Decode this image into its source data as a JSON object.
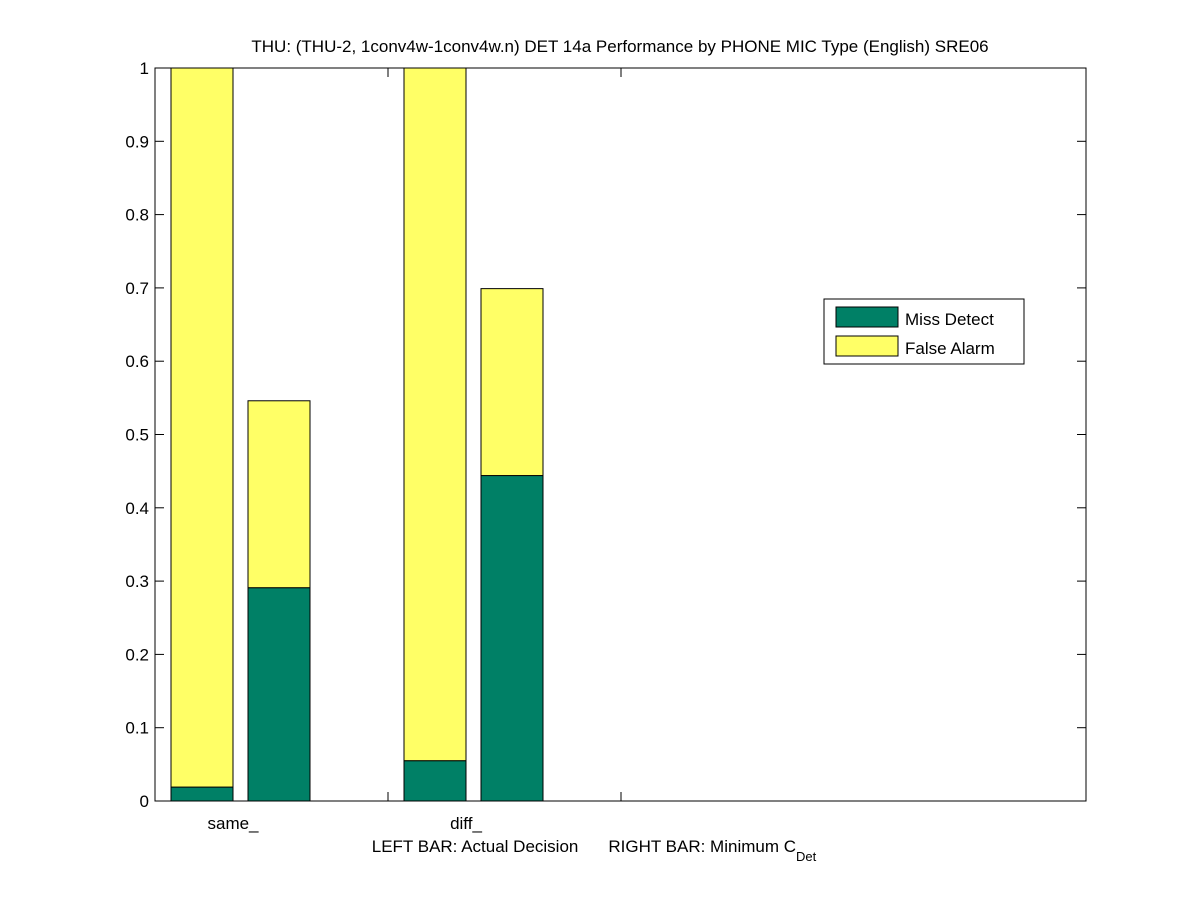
{
  "chart_data": {
    "type": "bar",
    "stacked": true,
    "title": "THU: (THU-2, 1conv4w-1conv4w.n) DET 14a Performance by PHONE MIC Type (English) SRE06",
    "xlabel": {
      "left_part": "LEFT BAR: Actual Decision",
      "right_part": "RIGHT BAR: Minimum C",
      "right_subscript": "Det"
    },
    "ylabel": "",
    "ylim": [
      0,
      1
    ],
    "yticks": [
      0,
      0.1,
      0.2,
      0.3,
      0.4,
      0.5,
      0.6,
      0.7,
      0.8,
      0.9,
      1
    ],
    "ytick_labels": [
      "0",
      "0.1",
      "0.2",
      "0.3",
      "0.4",
      "0.5",
      "0.6",
      "0.7",
      "0.8",
      "0.9",
      "1"
    ],
    "categories": [
      "same_",
      "diff_"
    ],
    "bars_per_category": [
      "Actual Decision",
      "Minimum C_Det"
    ],
    "series": [
      {
        "name": "Miss Detect",
        "color": "#008066",
        "values": [
          [
            0.019,
            0.291
          ],
          [
            0.055,
            0.444
          ]
        ]
      },
      {
        "name": "False Alarm",
        "color": "#FFFF66",
        "values": [
          [
            0.981,
            0.255
          ],
          [
            0.945,
            0.255
          ]
        ]
      }
    ],
    "legend": {
      "position": "right",
      "entries": [
        "Miss Detect",
        "False Alarm"
      ]
    },
    "grid": false,
    "colors": {
      "axis": "#000000",
      "background": "#ffffff"
    }
  }
}
